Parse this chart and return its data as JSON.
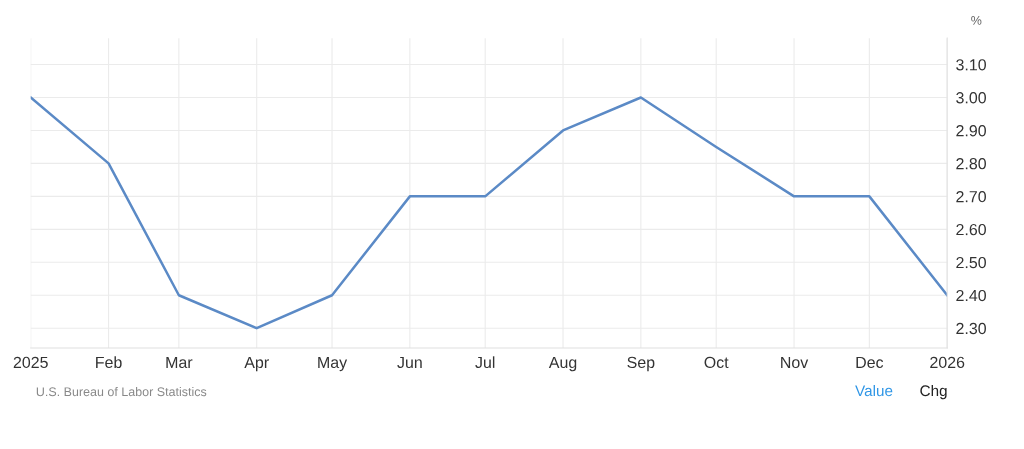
{
  "chart_data": {
    "type": "line",
    "x": [
      "2025-01",
      "2025-02",
      "2025-03",
      "2025-04",
      "2025-05",
      "2025-06",
      "2025-07",
      "2025-08",
      "2025-09",
      "2025-10",
      "2025-11",
      "2025-12",
      "2026-01"
    ],
    "series": [
      {
        "color": "#5b8ac6",
        "values": [
          3.0,
          2.8,
          2.4,
          2.3,
          2.4,
          2.7,
          2.7,
          2.9,
          3.0,
          2.85,
          2.7,
          2.7,
          2.4
        ]
      }
    ],
    "xlim": [
      "2025-01",
      "2026-01"
    ],
    "xticks": [
      {
        "value": "2025-01",
        "label": "2025"
      },
      {
        "value": "2025-02",
        "label": "Feb"
      },
      {
        "value": "2025-03",
        "label": "Mar"
      },
      {
        "value": "2025-04",
        "label": "Apr"
      },
      {
        "value": "2025-05",
        "label": "May"
      },
      {
        "value": "2025-06",
        "label": "Jun"
      },
      {
        "value": "2025-07",
        "label": "Jul"
      },
      {
        "value": "2025-08",
        "label": "Aug"
      },
      {
        "value": "2025-09",
        "label": "Sep"
      },
      {
        "value": "2025-10",
        "label": "Oct"
      },
      {
        "value": "2025-11",
        "label": "Nov"
      },
      {
        "value": "2025-12",
        "label": "Dec"
      },
      {
        "value": "2026-01",
        "label": "2026"
      }
    ],
    "ylim": [
      2.24,
      3.18
    ],
    "yticks": [
      {
        "value": 2.3,
        "label": "2.30"
      },
      {
        "value": 2.4,
        "label": "2.40"
      },
      {
        "value": 2.5,
        "label": "2.50"
      },
      {
        "value": 2.6,
        "label": "2.60"
      },
      {
        "value": 2.7,
        "label": "2.70"
      },
      {
        "value": 2.8,
        "label": "2.80"
      },
      {
        "value": 2.9,
        "label": "2.90"
      },
      {
        "value": 3.0,
        "label": "3.00"
      },
      {
        "value": 3.1,
        "label": "3.10"
      }
    ],
    "ylabel": "%",
    "grid": true,
    "marker": "none",
    "line_style": "solid",
    "annotations": [
      "U.S. Bureau of Labor Statistics",
      "Value",
      "Chg"
    ]
  }
}
